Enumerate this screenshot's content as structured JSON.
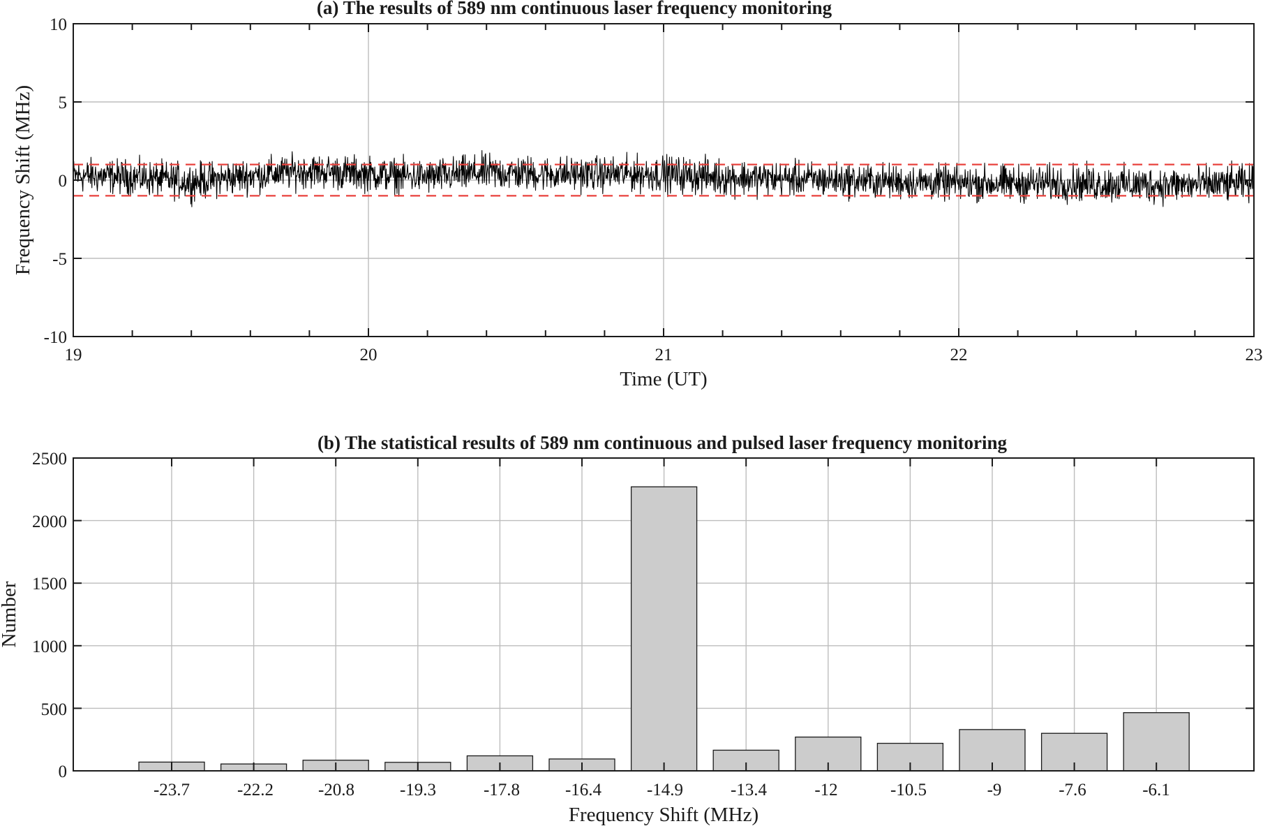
{
  "chart_data": [
    {
      "type": "line",
      "title": "(a) The results of 589 nm continuous laser frequency monitoring",
      "xlabel": "Time (UT)",
      "ylabel": "Frequency Shift (MHz)",
      "xlim": [
        19,
        23
      ],
      "ylim": [
        -10,
        10
      ],
      "xticks": [
        "19",
        "20",
        "21",
        "22",
        "23"
      ],
      "yticks": [
        "10",
        "5",
        "0",
        "-5",
        "-10"
      ],
      "grid": true,
      "series": [
        {
          "color": "#000000",
          "x": [
            19.0,
            19.2,
            19.4,
            19.6,
            19.8,
            20.0,
            20.2,
            20.4,
            20.6,
            20.8,
            21.0,
            21.2,
            21.4,
            21.6,
            21.8,
            22.0,
            22.2,
            22.4,
            22.6,
            22.8,
            23.0
          ],
          "y": [
            0.3,
            0.2,
            -0.1,
            0.3,
            0.6,
            0.4,
            0.2,
            0.5,
            0.4,
            0.4,
            0.4,
            0.2,
            0.1,
            0.0,
            -0.1,
            -0.2,
            -0.2,
            -0.2,
            -0.3,
            -0.3,
            -0.2
          ],
          "spread": [
            1.6,
            1.6,
            1.7,
            1.6,
            1.6,
            1.6,
            1.6,
            1.7,
            1.6,
            1.6,
            1.7,
            1.7,
            1.6,
            1.6,
            1.6,
            1.6,
            1.7,
            1.7,
            1.7,
            1.7,
            1.7
          ]
        }
      ],
      "reference_lines": [
        {
          "y": 1,
          "color": "#e8413c",
          "style": "dashed"
        },
        {
          "y": -1,
          "color": "#e8413c",
          "style": "dashed"
        }
      ]
    },
    {
      "type": "bar",
      "title": "(b) The statistical results of 589 nm continuous and pulsed laser frequency monitoring",
      "xlabel": "Frequency Shift (MHz)",
      "ylabel": "Number",
      "categories": [
        "-23.7",
        "-22.2",
        "-20.8",
        "-19.3",
        "-17.8",
        "-16.4",
        "-14.9",
        "-13.4",
        "-12",
        "-10.5",
        "-9",
        "-7.6",
        "-6.1"
      ],
      "values": [
        70,
        55,
        85,
        68,
        120,
        95,
        2270,
        165,
        270,
        220,
        330,
        300,
        465
      ],
      "ylim": [
        0,
        2500
      ],
      "yticks": [
        "2500",
        "2000",
        "1500",
        "1000",
        "500",
        "0"
      ],
      "grid": true,
      "bar_color": "#cccccc"
    }
  ]
}
